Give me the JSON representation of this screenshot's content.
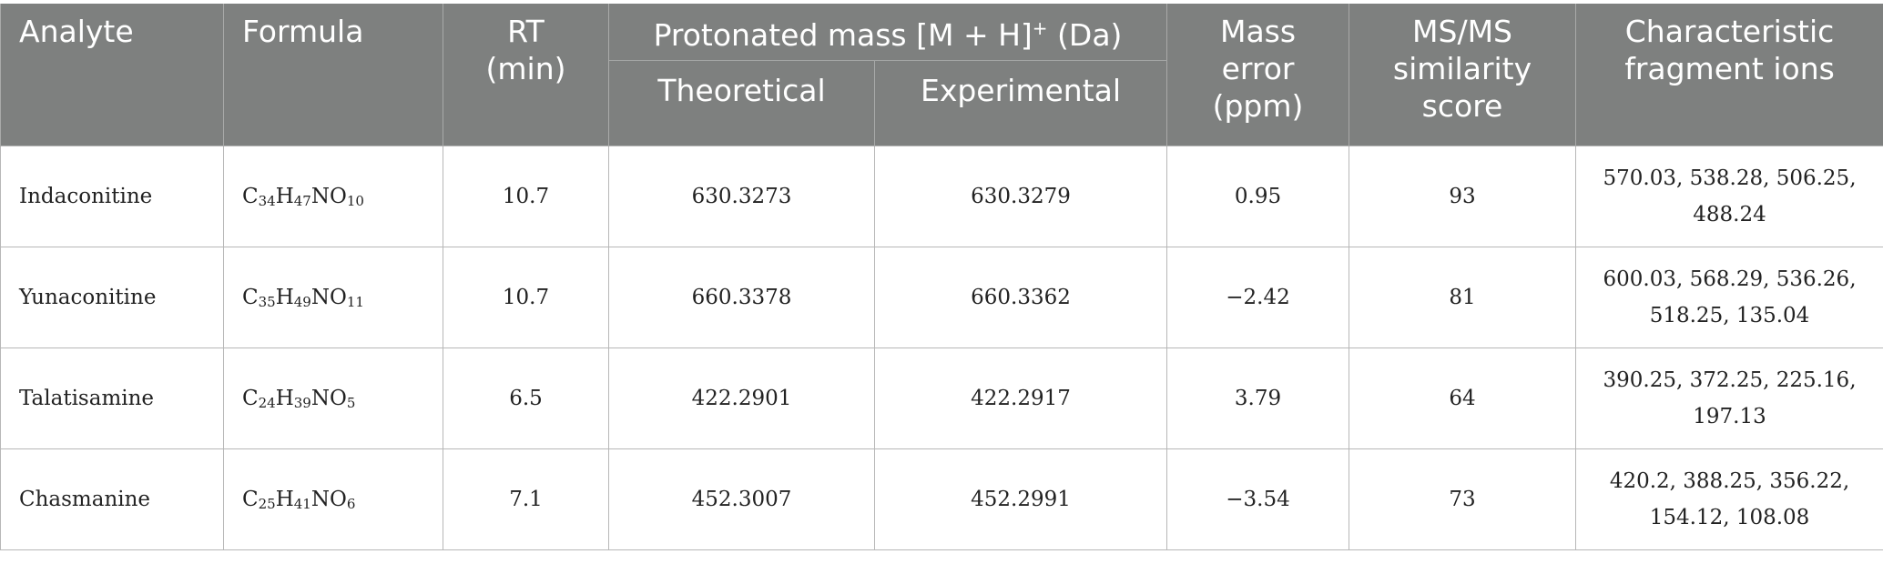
{
  "table": {
    "headers": {
      "analyte": "Analyte",
      "formula": "Formula",
      "rt_line1": "RT",
      "rt_line2": "(min)",
      "protonated_prefix": "Protonated mass [M + H]",
      "protonated_sup": "+",
      "protonated_suffix": " (Da)",
      "theoretical": "Theoretical",
      "experimental": "Experimental",
      "mass_error_line1": "Mass",
      "mass_error_line2": "error",
      "mass_error_line3": "(ppm)",
      "msms_line1": "MS/MS",
      "msms_line2": "similarity",
      "msms_line3": "score",
      "frag_line1": "Characteristic",
      "frag_line2": "fragment ions"
    },
    "rows": [
      {
        "analyte": "Indaconitine",
        "formula": [
          {
            "t": "C"
          },
          {
            "s": "34"
          },
          {
            "t": "H"
          },
          {
            "s": "47"
          },
          {
            "t": "NO"
          },
          {
            "s": "10"
          }
        ],
        "rt": "10.7",
        "theoretical": "630.3273",
        "experimental": "630.3279",
        "mass_error": "0.95",
        "msms_score": "93",
        "fragments_line1": "570.03, 538.28, 506.25,",
        "fragments_line2": "488.24"
      },
      {
        "analyte": "Yunaconitine",
        "formula": [
          {
            "t": "C"
          },
          {
            "s": "35"
          },
          {
            "t": "H"
          },
          {
            "s": "49"
          },
          {
            "t": "NO"
          },
          {
            "s": "11"
          }
        ],
        "rt": "10.7",
        "theoretical": "660.3378",
        "experimental": "660.3362",
        "mass_error": "−2.42",
        "msms_score": "81",
        "fragments_line1": "600.03, 568.29, 536.26,",
        "fragments_line2": "518.25, 135.04"
      },
      {
        "analyte": "Talatisamine",
        "formula": [
          {
            "t": "C"
          },
          {
            "s": "24"
          },
          {
            "t": "H"
          },
          {
            "s": "39"
          },
          {
            "t": "NO"
          },
          {
            "s": "5"
          }
        ],
        "rt": "6.5",
        "theoretical": "422.2901",
        "experimental": "422.2917",
        "mass_error": "3.79",
        "msms_score": "64",
        "fragments_line1": "390.25, 372.25, 225.16,",
        "fragments_line2": "197.13"
      },
      {
        "analyte": "Chasmanine",
        "formula": [
          {
            "t": "C"
          },
          {
            "s": "25"
          },
          {
            "t": "H"
          },
          {
            "s": "41"
          },
          {
            "t": "NO"
          },
          {
            "s": "6"
          }
        ],
        "rt": "7.1",
        "theoretical": "452.3007",
        "experimental": "452.2991",
        "mass_error": "−3.54",
        "msms_score": "73",
        "fragments_line1": "420.2, 388.25, 356.22,",
        "fragments_line2": "154.12, 108.08"
      }
    ]
  }
}
